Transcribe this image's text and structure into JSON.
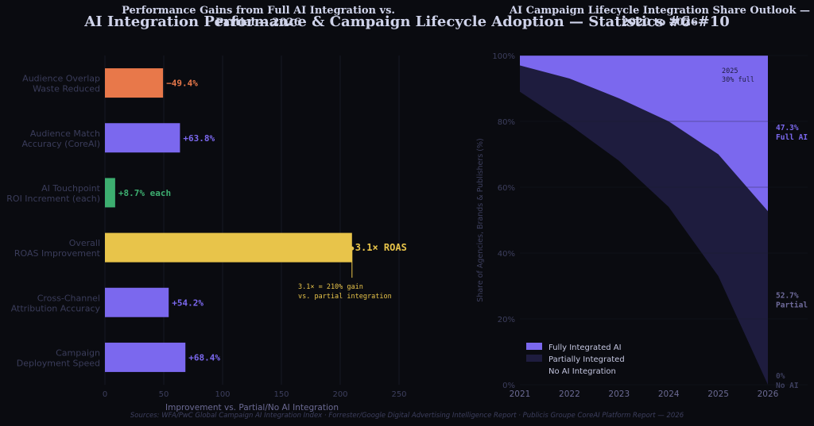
{
  "suptitle": "AI Integration Performance & Campaign Lifecycle Adoption — Statistics #6–#10",
  "source": "Sources: WFA/PwC Global Campaign AI Integration Index · Forrester/Google Digital Advertising Intelligence Report · Publicis Groupe CoreAI Platform Report — 2026",
  "colors": {
    "background": "#0a0b10",
    "purple": "#7b68ee",
    "orange": "#e8784a",
    "green": "#3dae70",
    "gold": "#e8c44a",
    "dark_purple": "#1e1c3e",
    "muted_text": "#3d3f5e"
  },
  "chart_data": [
    {
      "type": "bar",
      "orientation": "horizontal",
      "title": "Performance Gains from Full AI Integration vs. Partial — 2026",
      "xlabel": "Improvement vs. Partial/No AI Integration",
      "xlim": [
        0,
        250
      ],
      "xticks": [
        "0",
        "50",
        "100",
        "150",
        "200",
        "250"
      ],
      "grid": true,
      "categories": [
        "Audience Overlap\nWaste Reduced",
        "Audience Match\nAccuracy (CoreAI)",
        "AI Touchpoint\nROI Increment (each)",
        "Overall\nROAS Improvement",
        "Cross-Channel\nAttribution Accuracy",
        "Campaign\nDeployment Speed"
      ],
      "values": [
        49.4,
        63.8,
        8.7,
        210,
        54.2,
        68.4
      ],
      "value_labels": [
        "−49.4%",
        "+63.8%",
        "+8.7% each",
        "3.1× ROAS",
        "+54.2%",
        "+68.4%"
      ],
      "bar_colors": [
        "#e8784a",
        "#7b68ee",
        "#3dae70",
        "#e8c44a",
        "#7b68ee",
        "#7b68ee"
      ],
      "annotation": "3.1× = 210% gain\nvs. partial integration"
    },
    {
      "type": "area",
      "stacked": true,
      "title": "AI Campaign Lifecycle Integration Share Outlook — 2020 to 2026",
      "ylabel": "Share of Agencies, Brands & Publishers (%)",
      "x": [
        2021,
        2022,
        2023,
        2024,
        2025,
        2026
      ],
      "xticks": [
        "2021",
        "2022",
        "2023",
        "2024",
        "2025",
        "2026"
      ],
      "ylim": [
        0,
        100
      ],
      "yticks": [
        "0%",
        "20%",
        "40%",
        "60%",
        "80%",
        "100%"
      ],
      "grid": true,
      "legend_position": "lower-left",
      "series": [
        {
          "name": "No AI Integration",
          "color": "#0a0b10",
          "values": [
            89,
            79,
            68,
            54,
            33,
            0
          ]
        },
        {
          "name": "Partially Integrated",
          "color": "#1e1c3e",
          "values": [
            8,
            14,
            19,
            26,
            37,
            52.7
          ]
        },
        {
          "name": "Fully Integrated AI",
          "color": "#7b68ee",
          "values": [
            3,
            7,
            13,
            20,
            30,
            47.3
          ]
        }
      ],
      "annotation": "2025\n30% full",
      "end_labels": [
        {
          "text": "47.3%\nFull AI",
          "color": "#7b68ee"
        },
        {
          "text": "52.7%\nPartial",
          "color": "#6e6a9a"
        },
        {
          "text": "0%\nNo AI",
          "color": "#3d3f5e"
        }
      ]
    }
  ]
}
